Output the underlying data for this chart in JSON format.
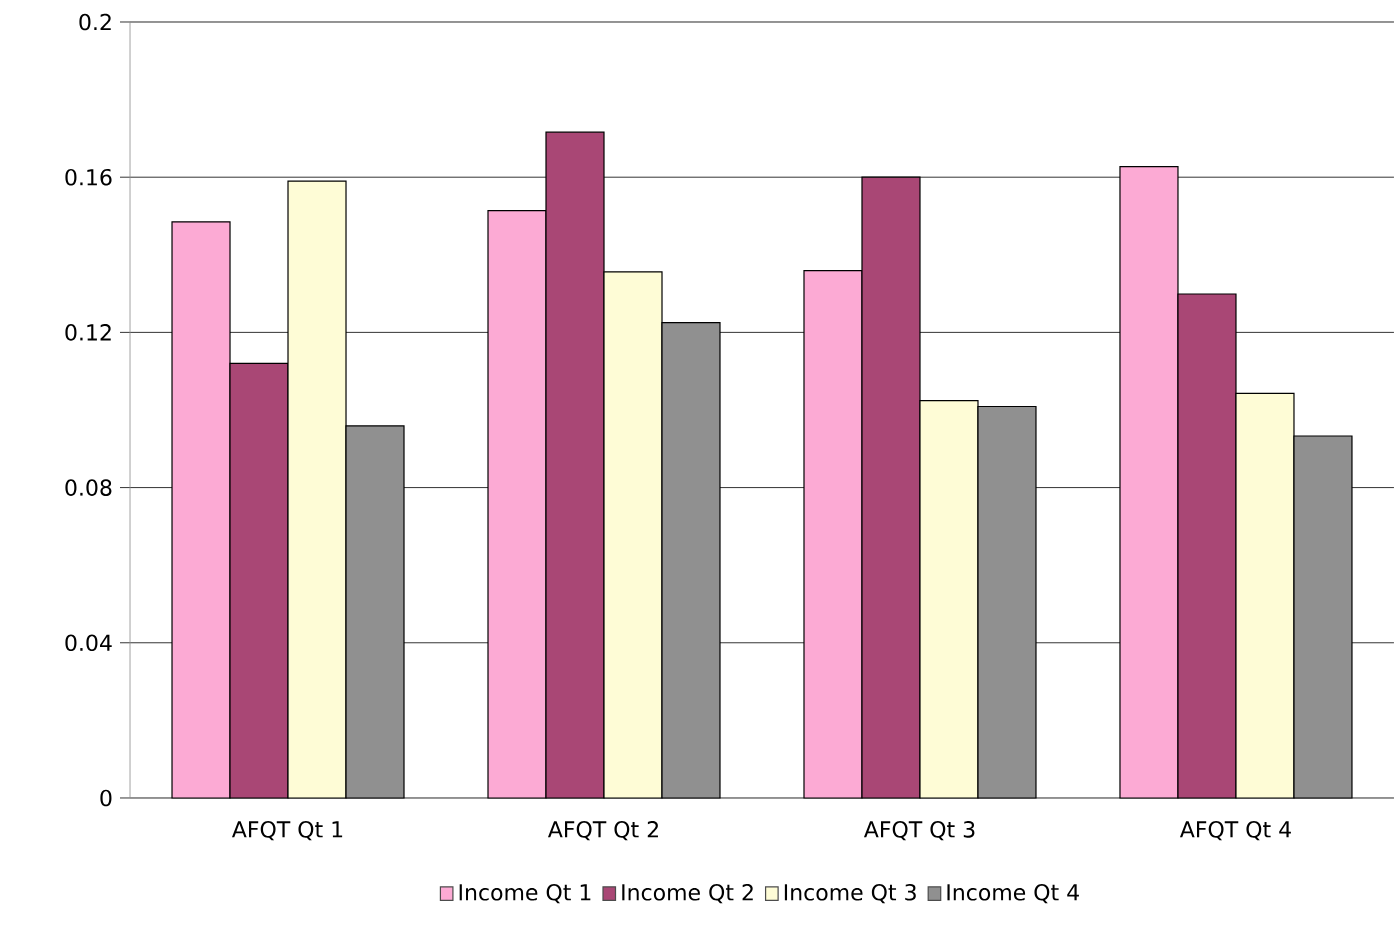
{
  "chart_data": {
    "type": "bar",
    "categories": [
      "AFQT Qt 1",
      "AFQT Qt 2",
      "AFQT Qt 3",
      "AFQT Qt 4"
    ],
    "series": [
      {
        "name": "Income Qt 1",
        "color": "#fcaad4",
        "values": [
          0.1485,
          0.1514,
          0.1359,
          0.1627
        ]
      },
      {
        "name": "Income Qt 2",
        "color": "#a94775",
        "values": [
          0.112,
          0.1716,
          0.16,
          0.1299
        ]
      },
      {
        "name": "Income Qt 3",
        "color": "#fefcd6",
        "values": [
          0.159,
          0.1356,
          0.1024,
          0.1043
        ]
      },
      {
        "name": "Income Qt 4",
        "color": "#909090",
        "values": [
          0.0959,
          0.1225,
          0.1009,
          0.0933
        ]
      }
    ],
    "ylim": [
      0,
      0.2
    ],
    "yticks": [
      0,
      0.04,
      0.08,
      0.12,
      0.16,
      0.2
    ],
    "grid": "y",
    "legend": "bottom"
  }
}
